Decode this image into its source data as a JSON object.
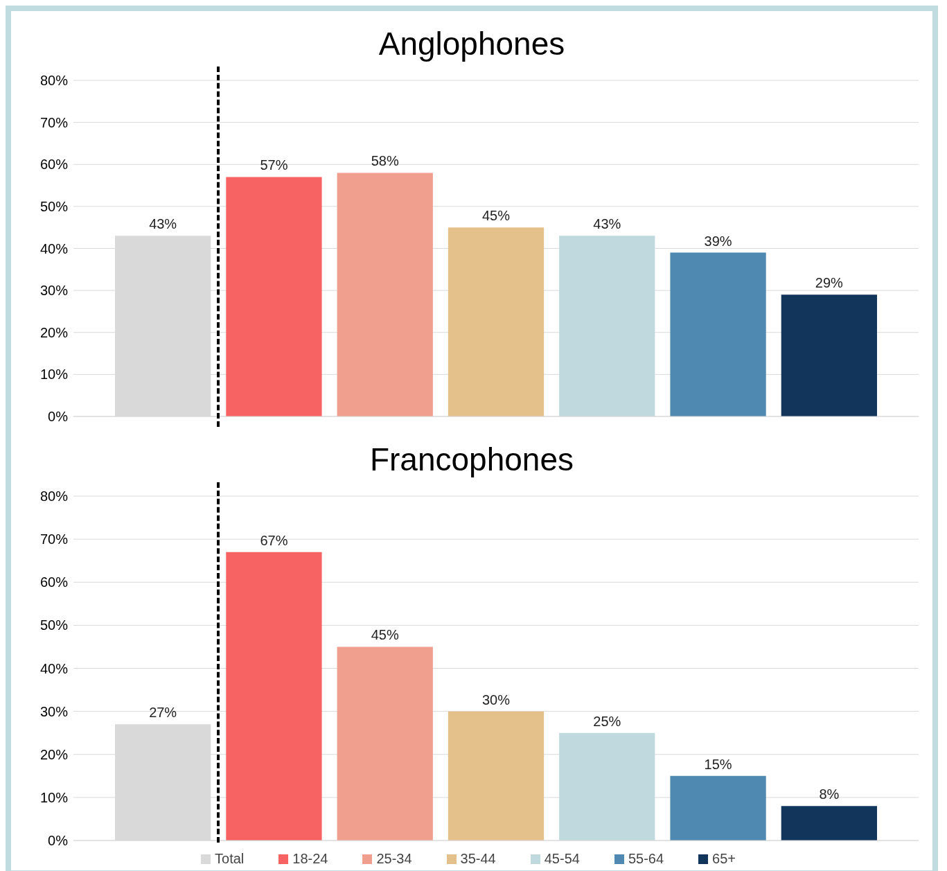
{
  "chart_data": [
    {
      "type": "bar",
      "title": "Anglophones",
      "categories": [
        null
      ],
      "series": [
        {
          "color": "#d9d9d9",
          "values": [
            43
          ],
          "value_labels": [
            "43%"
          ]
        },
        {
          "color": "#f76262",
          "values": [
            57
          ],
          "value_labels": [
            "57%"
          ]
        },
        {
          "color": "#f09f8f",
          "values": [
            58
          ],
          "value_labels": [
            "58%"
          ]
        },
        {
          "color": "#e4c08b",
          "values": [
            45
          ],
          "value_labels": [
            "45%"
          ]
        },
        {
          "color": "#bfd9de",
          "values": [
            43
          ],
          "value_labels": [
            "43%"
          ]
        },
        {
          "color": "#4f88b0",
          "values": [
            39
          ],
          "value_labels": [
            "39%"
          ]
        },
        {
          "color": "#12355b",
          "values": [
            29
          ],
          "value_labels": [
            "29%"
          ]
        }
      ],
      "ylim": [
        0,
        80
      ],
      "yticks": [
        {
          "value": 0,
          "label": "0%"
        },
        {
          "value": 10,
          "label": "10%"
        },
        {
          "value": 20,
          "label": "20%"
        },
        {
          "value": 30,
          "label": "30%"
        },
        {
          "value": 40,
          "label": "40%"
        },
        {
          "value": 50,
          "label": "50%"
        },
        {
          "value": 60,
          "label": "60%"
        },
        {
          "value": 70,
          "label": "70%"
        },
        {
          "value": 80,
          "label": "80%"
        }
      ],
      "grid": "y",
      "legend": false
    },
    {
      "type": "bar",
      "title": "Francophones",
      "categories": [
        null
      ],
      "series": [
        {
          "name": "Total",
          "color": "#d9d9d9",
          "values": [
            27
          ],
          "value_labels": [
            "27%"
          ]
        },
        {
          "name": "18-24",
          "color": "#f76262",
          "values": [
            67
          ],
          "value_labels": [
            "67%"
          ]
        },
        {
          "name": "25-34",
          "color": "#f09f8f",
          "values": [
            45
          ],
          "value_labels": [
            "45%"
          ]
        },
        {
          "name": "35-44",
          "color": "#e4c08b",
          "values": [
            30
          ],
          "value_labels": [
            "30%"
          ]
        },
        {
          "name": "45-54",
          "color": "#bfd9de",
          "values": [
            25
          ],
          "value_labels": [
            "25%"
          ]
        },
        {
          "name": "55-64",
          "color": "#4f88b0",
          "values": [
            15
          ],
          "value_labels": [
            "15%"
          ]
        },
        {
          "name": "65+",
          "color": "#12355b",
          "values": [
            8
          ],
          "value_labels": [
            "8%"
          ]
        }
      ],
      "ylim": [
        0,
        80
      ],
      "yticks": [
        {
          "value": 0,
          "label": "0%"
        },
        {
          "value": 10,
          "label": "10%"
        },
        {
          "value": 20,
          "label": "20%"
        },
        {
          "value": 30,
          "label": "30%"
        },
        {
          "value": 40,
          "label": "40%"
        },
        {
          "value": 50,
          "label": "50%"
        },
        {
          "value": 60,
          "label": "60%"
        },
        {
          "value": 70,
          "label": "70%"
        },
        {
          "value": 80,
          "label": "80%"
        }
      ],
      "grid": "y",
      "legend": "bottom"
    }
  ]
}
